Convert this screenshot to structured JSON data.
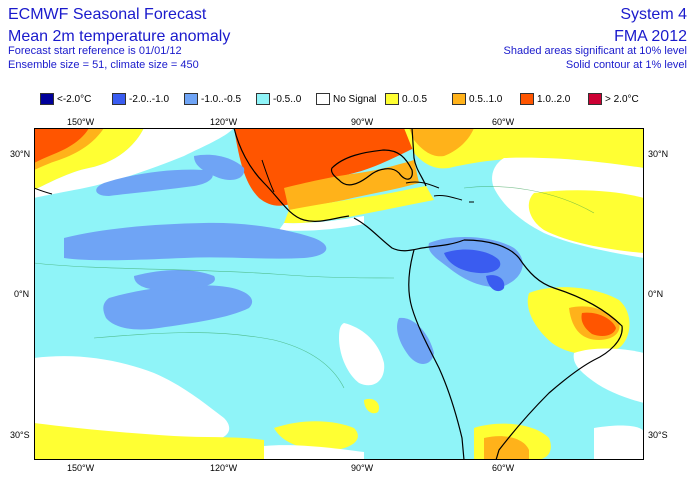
{
  "header": {
    "title": "ECMWF Seasonal Forecast",
    "subtitle": "Mean 2m temperature anomaly",
    "start_ref": "Forecast start reference is 01/01/12",
    "ensemble": "Ensemble size = 51, climate size = 450",
    "system": "System 4",
    "period": "FMA 2012",
    "sig10": "Shaded areas significant at 10% level",
    "sig1": "Solid contour at 1% level"
  },
  "legend": [
    {
      "label": "<-2.0°C",
      "color": "#00009a"
    },
    {
      "label": "-2.0..-1.0",
      "color": "#3a5cf0"
    },
    {
      "label": "-1.0..-0.5",
      "color": "#6fa4f5"
    },
    {
      "label": "-0.5..0",
      "color": "#8ff4f8"
    },
    {
      "label": "No Signal",
      "color": "#ffffff"
    },
    {
      "label": "0..0.5",
      "color": "#ffff33"
    },
    {
      "label": "0.5..1.0",
      "color": "#ffb21a"
    },
    {
      "label": "1.0..2.0",
      "color": "#ff5500"
    },
    {
      "label": "> 2.0°C",
      "color": "#cc0033"
    }
  ],
  "axes": {
    "lon_ticks": [
      "150°W",
      "120°W",
      "90°W",
      "60°W"
    ],
    "lat_ticks": [
      "30°N",
      "0°N",
      "30°S"
    ]
  }
}
